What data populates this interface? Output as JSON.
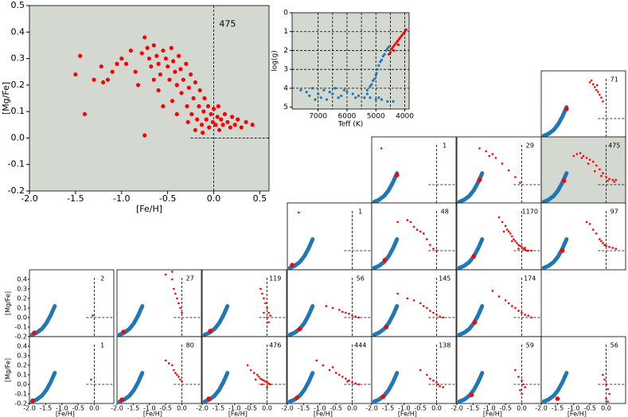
{
  "chart_data": {
    "type": "scatter",
    "main": {
      "xlabel": "[Fe/H]",
      "ylabel": "[Mg/Fe]",
      "count": 475,
      "xlim": [
        -2.0,
        0.6
      ],
      "ylim": [
        -0.2,
        0.5
      ],
      "xticks": [
        {
          "value": -2,
          "label": "-2.0"
        },
        -1.5,
        {
          "value": -1,
          "label": "-1.0"
        },
        -0.5,
        {
          "value": 0,
          "label": "0.0"
        },
        0.5
      ],
      "yticks": [
        -0.2,
        -0.1,
        {
          "value": 0,
          "label": "0.0"
        },
        0.1,
        0.2,
        0.3,
        0.4,
        0.5
      ],
      "reference_lines": {
        "x": 0,
        "y": 0,
        "hline_from": -0.25
      },
      "color": "#ff0000",
      "face_color": "#d3d8d0",
      "x": [
        -1.45,
        -1.5,
        -1.4,
        -1.3,
        -1.22,
        -1.2,
        -1.15,
        -1.1,
        -1.05,
        -1.0,
        -0.95,
        -0.9,
        -0.85,
        -0.78,
        -0.75,
        -0.72,
        -0.7,
        -0.68,
        -0.65,
        -0.62,
        -0.6,
        -0.58,
        -0.55,
        -0.52,
        -0.5,
        -0.48,
        -0.46,
        -0.44,
        -0.42,
        -0.4,
        -0.38,
        -0.36,
        -0.35,
        -0.33,
        -0.3,
        -0.29,
        -0.27,
        -0.25,
        -0.24,
        -0.22,
        -0.2,
        -0.18,
        -0.16,
        -0.15,
        -0.13,
        -0.11,
        -0.1,
        -0.08,
        -0.06,
        -0.05,
        -0.03,
        -0.01,
        0.0,
        0.02,
        0.04,
        0.06,
        0.08,
        0.1,
        0.12,
        0.15,
        0.18,
        0.2,
        0.23,
        0.26,
        0.3,
        0.35,
        0.42,
        -0.82,
        -0.75,
        -0.6,
        -0.45,
        -0.28,
        -0.55,
        -0.65,
        -0.4,
        -0.2,
        -0.12,
        0.05
      ],
      "y": [
        0.31,
        0.24,
        0.09,
        0.22,
        0.27,
        0.21,
        0.22,
        0.25,
        0.28,
        0.3,
        0.28,
        0.33,
        0.25,
        0.32,
        0.38,
        0.34,
        0.3,
        0.27,
        0.35,
        0.31,
        0.28,
        0.24,
        0.33,
        0.3,
        0.27,
        0.22,
        0.34,
        0.29,
        0.25,
        0.2,
        0.31,
        0.26,
        0.17,
        0.22,
        0.28,
        0.12,
        0.19,
        0.24,
        0.09,
        0.15,
        0.21,
        0.07,
        0.12,
        0.18,
        0.05,
        0.1,
        0.15,
        0.07,
        0.12,
        0.04,
        0.09,
        0.06,
        0.11,
        0.05,
        0.08,
        0.03,
        0.07,
        0.05,
        0.09,
        0.06,
        0.04,
        0.08,
        0.05,
        0.07,
        0.04,
        0.06,
        0.05,
        0.2,
        0.01,
        0.18,
        0.14,
        0.06,
        0.12,
        0.22,
        0.09,
        0.03,
        0.02,
        0.12
      ]
    },
    "inset": {
      "xlabel": "Teff (K)",
      "ylabel": "log(g)",
      "xlim": [
        7900,
        3850
      ],
      "ylim": [
        5.1,
        0
      ],
      "xticks": [
        7000,
        6000,
        5000,
        4000
      ],
      "yticks": [
        0,
        1,
        2,
        3,
        4,
        5
      ],
      "grid_x": [
        7000,
        6500,
        6000,
        5500,
        5000,
        4500,
        4000
      ],
      "grid_y": [
        1,
        2,
        3,
        4
      ],
      "face_color": "#d3d8d0",
      "series": [
        {
          "color": "#1f77b4",
          "x": [
            7600,
            7400,
            7200,
            7000,
            6800,
            6600,
            6400,
            6200,
            6000,
            5800,
            5600,
            5400,
            5200,
            5000,
            4800,
            4600,
            4400,
            7300,
            6900,
            6500,
            6100,
            5700,
            5300,
            4900,
            5200,
            5100,
            5000,
            4950,
            4900,
            4850,
            4800,
            4750,
            4700,
            4650,
            4600,
            4550,
            5300,
            5150,
            5050,
            4980,
            7100,
            6700,
            6300
          ],
          "y": [
            4.1,
            4.2,
            4.0,
            4.3,
            4.1,
            4.2,
            4.0,
            4.4,
            4.2,
            4.3,
            4.4,
            4.5,
            4.5,
            4.6,
            4.6,
            4.7,
            4.7,
            4.4,
            4.5,
            4.3,
            4.1,
            4.5,
            4.3,
            4.5,
            3.9,
            3.6,
            3.3,
            3.0,
            2.8,
            2.6,
            2.5,
            2.3,
            2.2,
            2.0,
            1.9,
            1.8,
            4.1,
            3.8,
            3.5,
            3.2,
            4.6,
            4.6,
            4.5
          ]
        },
        {
          "color": "#ff0000",
          "x": [
            4550,
            4500,
            4450,
            4400,
            4350,
            4300,
            4250,
            4200,
            4150,
            4100,
            4050,
            4000,
            3950,
            4380,
            4220
          ],
          "y": [
            2.2,
            2.1,
            1.9,
            1.8,
            1.7,
            1.6,
            1.5,
            1.4,
            1.3,
            1.2,
            1.1,
            1.0,
            0.9,
            2.0,
            1.7
          ]
        }
      ]
    },
    "panels": {
      "xlabel": "[Fe/H]",
      "ylabel": "[Mg/Fe]",
      "xlim": [
        -2.0,
        0.6
      ],
      "ylim": [
        -0.2,
        0.5
      ],
      "xticks": [
        {
          "value": -2,
          "label": "-2.0"
        },
        -1.5,
        {
          "value": -1,
          "label": "-1.0"
        },
        -0.5,
        {
          "value": 0,
          "label": "0.0"
        }
      ],
      "yticks": [
        -0.2,
        -0.1,
        {
          "value": 0,
          "label": "0.0"
        },
        0.1,
        0.2,
        0.3,
        0.4
      ],
      "reference_lines": {
        "x": 0,
        "y": 0,
        "hline_from": -0.25
      },
      "color": "#ff0000",
      "track": {
        "color": "#1f77b4",
        "x": [
          -1.92,
          -1.78,
          -1.62,
          -1.48,
          -1.35,
          -1.22
        ],
        "y": [
          -0.18,
          -0.16,
          -0.12,
          -0.06,
          0.02,
          0.12
        ]
      },
      "items": [
        {
          "count": 71,
          "x": [
            -0.5,
            -0.45,
            -0.4,
            -0.35,
            -0.3,
            -0.28,
            -0.25,
            -0.2,
            -0.15,
            -0.1
          ],
          "y": [
            0.38,
            0.4,
            0.36,
            0.33,
            0.3,
            0.35,
            0.28,
            0.25,
            0.22,
            0.18
          ],
          "selected_x": -1.22,
          "selected_y": 0.1
        },
        {
          "count": 1,
          "x": [
            -1.7
          ],
          "y": [
            0.38
          ],
          "selected_x": -1.22,
          "selected_y": 0.1
        },
        {
          "count": 29,
          "x": [
            -1.3,
            -1.1,
            -1.0,
            -0.9,
            -0.8,
            -0.6,
            -0.4,
            -0.2,
            -0.05
          ],
          "y": [
            0.38,
            0.35,
            0.3,
            0.32,
            0.28,
            0.22,
            0.15,
            0.08,
            0.02
          ],
          "selected_x": -1.3,
          "selected_y": 0.05
        },
        {
          "count": 475,
          "x": [
            -1.0,
            -0.9,
            -0.8,
            -0.7,
            -0.6,
            -0.5,
            -0.4,
            -0.3,
            -0.2,
            -0.1,
            0.0,
            0.1,
            0.2,
            0.3,
            -0.75,
            -0.55,
            -0.35,
            -0.15,
            0.05,
            0.25
          ],
          "y": [
            0.3,
            0.32,
            0.33,
            0.3,
            0.28,
            0.26,
            0.24,
            0.2,
            0.16,
            0.12,
            0.08,
            0.06,
            0.05,
            0.05,
            0.28,
            0.22,
            0.14,
            0.09,
            0.04,
            0.03
          ],
          "selected_x": -1.3,
          "selected_y": 0.04,
          "face_color": "#d3d8d0"
        },
        {
          "count": 1,
          "x": [
            -1.65
          ],
          "y": [
            0.4
          ],
          "selected_x": -1.85,
          "selected_y": -0.15
        },
        {
          "count": 48,
          "x": [
            -1.2,
            -0.9,
            -0.8,
            -0.7,
            -0.6,
            -0.5,
            -0.4,
            -0.3,
            -0.2,
            -0.1,
            0.0
          ],
          "y": [
            0.3,
            0.32,
            0.3,
            0.25,
            0.22,
            0.2,
            0.18,
            0.12,
            0.06,
            0.02,
            0.0
          ],
          "selected_x": -1.6,
          "selected_y": -0.1
        },
        {
          "count": 1170,
          "x": [
            -0.7,
            -0.6,
            -0.5,
            -0.45,
            -0.4,
            -0.35,
            -0.3,
            -0.25,
            -0.2,
            -0.15,
            -0.1,
            -0.05,
            0.0,
            0.05,
            0.1,
            0.15,
            0.2,
            0.3,
            -0.55,
            -0.3,
            -0.1,
            0.1
          ],
          "y": [
            0.35,
            0.3,
            0.26,
            0.22,
            0.2,
            0.18,
            0.15,
            0.12,
            0.1,
            0.08,
            0.06,
            0.05,
            0.04,
            0.02,
            0.01,
            0.0,
            0.0,
            0.0,
            0.2,
            0.1,
            0.02,
            0.03
          ],
          "selected_x": -1.48,
          "selected_y": -0.06
        },
        {
          "count": 97,
          "x": [
            -0.6,
            -0.5,
            -0.4,
            -0.3,
            -0.2,
            -0.15,
            -0.1,
            -0.05,
            0.0,
            0.1,
            0.2,
            0.3
          ],
          "y": [
            0.3,
            0.28,
            0.22,
            0.18,
            0.12,
            0.1,
            0.08,
            0.06,
            0.05,
            0.04,
            0.03,
            0.02
          ],
          "selected_x": -1.35,
          "selected_y": 0.0
        },
        {
          "count": 2,
          "x": [
            -0.05
          ],
          "y": [
            0.02
          ],
          "selected_x": -1.85,
          "selected_y": -0.16
        },
        {
          "count": 27,
          "x": [
            -0.5,
            -0.3,
            -0.25,
            -0.2,
            -0.15,
            -0.1,
            -0.05,
            0.0,
            -0.3
          ],
          "y": [
            0.45,
            0.4,
            0.3,
            0.25,
            0.2,
            0.15,
            0.1,
            0.05,
            0.48
          ],
          "selected_x": -1.8,
          "selected_y": -0.15
        },
        {
          "count": 119,
          "x": [
            -0.2,
            -0.15,
            -0.1,
            -0.05,
            0.0,
            0.05,
            0.1,
            -0.1,
            0.0,
            0.05
          ],
          "y": [
            0.3,
            0.25,
            0.2,
            0.15,
            0.1,
            0.05,
            0.02,
            0.05,
            0.0,
            -0.05
          ],
          "selected_x": -1.75,
          "selected_y": -0.14
        },
        {
          "count": 56,
          "x": [
            -0.8,
            -0.6,
            -0.4,
            -0.3,
            -0.2,
            -0.1,
            0.0,
            0.1,
            0.2
          ],
          "y": [
            0.12,
            0.1,
            0.08,
            0.06,
            0.05,
            0.04,
            0.02,
            0.01,
            0.0
          ],
          "selected_x": -1.62,
          "selected_y": -0.12
        },
        {
          "count": 145,
          "x": [
            -1.2,
            -0.9,
            -0.7,
            -0.5,
            -0.4,
            -0.3,
            -0.2,
            -0.1,
            0.0,
            0.1,
            0.2
          ],
          "y": [
            0.25,
            0.2,
            0.18,
            0.15,
            0.12,
            0.1,
            0.07,
            0.05,
            0.03,
            0.01,
            0.0
          ],
          "selected_x": -1.55,
          "selected_y": -0.1
        },
        {
          "count": 174,
          "x": [
            -0.9,
            -0.7,
            -0.5,
            -0.4,
            -0.3,
            -0.2,
            -0.1,
            0.0,
            0.1,
            0.2,
            0.3
          ],
          "y": [
            0.28,
            0.22,
            0.18,
            0.15,
            0.12,
            0.1,
            0.07,
            0.05,
            0.03,
            0.02,
            0.0
          ],
          "selected_x": -1.45,
          "selected_y": -0.05
        },
        {
          "count": 1,
          "x": [
            -0.1
          ],
          "y": [
            0.05
          ],
          "selected_x": -1.9,
          "selected_y": -0.17
        },
        {
          "count": 80,
          "x": [
            -0.5,
            -0.4,
            -0.3,
            -0.25,
            -0.2,
            -0.15,
            -0.1,
            -0.05,
            0.0
          ],
          "y": [
            0.25,
            0.22,
            0.2,
            0.15,
            0.12,
            0.1,
            0.08,
            0.05,
            0.03
          ],
          "selected_x": -1.85,
          "selected_y": -0.16
        },
        {
          "count": 476,
          "x": [
            -0.6,
            -0.5,
            -0.4,
            -0.3,
            -0.25,
            -0.2,
            -0.15,
            -0.1,
            -0.05,
            0.0,
            0.05,
            0.1,
            -0.35,
            -0.15,
            0.0
          ],
          "y": [
            0.2,
            0.15,
            0.12,
            0.1,
            0.08,
            0.06,
            0.05,
            0.04,
            0.03,
            0.02,
            0.01,
            0.0,
            0.05,
            0.0,
            -0.03
          ],
          "selected_x": -1.8,
          "selected_y": -0.15
        },
        {
          "count": 444,
          "x": [
            -1.1,
            -0.9,
            -0.7,
            -0.5,
            -0.4,
            -0.3,
            -0.2,
            -0.1,
            0.0,
            0.1,
            0.2,
            -0.6,
            -0.15
          ],
          "y": [
            0.25,
            0.2,
            0.15,
            0.12,
            0.1,
            0.08,
            0.06,
            0.04,
            0.02,
            0.01,
            0.0,
            0.18,
            0.03
          ],
          "selected_x": -1.7,
          "selected_y": -0.14
        },
        {
          "count": 138,
          "x": [
            -0.5,
            -0.3,
            -0.2,
            -0.1,
            0.0,
            0.05,
            0.1,
            0.2
          ],
          "y": [
            0.15,
            0.1,
            0.06,
            0.04,
            0.02,
            0.0,
            -0.02,
            -0.03
          ],
          "selected_x": -1.65,
          "selected_y": -0.13
        },
        {
          "count": 59,
          "x": [
            -0.2,
            -0.1,
            0.0,
            0.05,
            0.1,
            -0.05,
            0.0
          ],
          "y": [
            0.15,
            0.08,
            0.04,
            0.0,
            -0.03,
            -0.06,
            -0.1
          ],
          "selected_x": -1.55,
          "selected_y": -0.11
        },
        {
          "count": 56,
          "x": [
            -0.1,
            -0.05,
            0.0,
            0.05,
            0.1,
            0.0,
            0.05
          ],
          "y": [
            0.1,
            0.05,
            0.0,
            -0.05,
            -0.1,
            -0.15,
            -0.18
          ],
          "selected_x": -1.5,
          "selected_y": -0.15
        }
      ]
    }
  }
}
